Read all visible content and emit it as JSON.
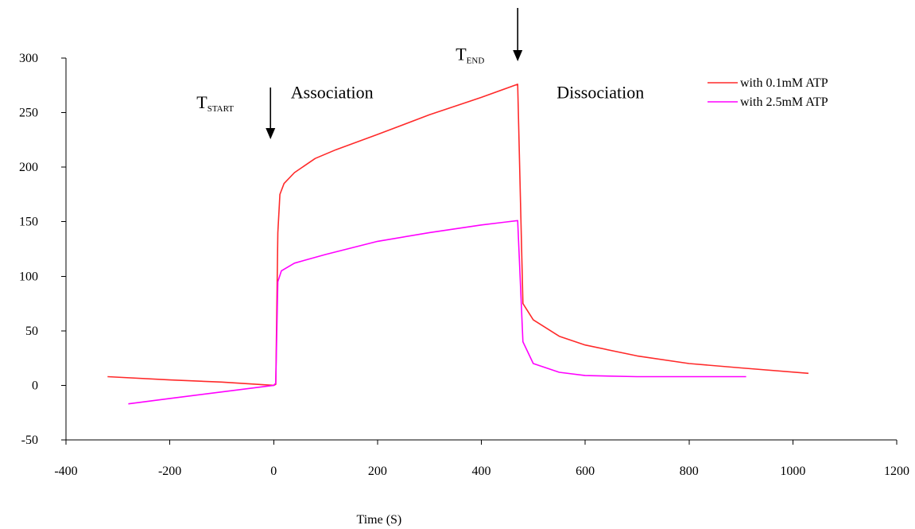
{
  "chart_data": {
    "type": "line",
    "title": "",
    "xlabel": "Time (S)",
    "ylabel": "",
    "xlim": [
      -400,
      1200
    ],
    "ylim": [
      -50,
      300
    ],
    "xticks": [
      -400,
      -200,
      0,
      200,
      400,
      600,
      800,
      1000,
      1200
    ],
    "yticks": [
      -50,
      0,
      50,
      100,
      150,
      200,
      250,
      300
    ],
    "grid": false,
    "legend_position": "top-right",
    "series": [
      {
        "name": "with 0.1mM ATP",
        "color": "#ff2a2a",
        "points": [
          [
            -320,
            8
          ],
          [
            -200,
            5
          ],
          [
            -100,
            3
          ],
          [
            0,
            0
          ],
          [
            4,
            1
          ],
          [
            8,
            140
          ],
          [
            12,
            175
          ],
          [
            20,
            185
          ],
          [
            40,
            195
          ],
          [
            80,
            208
          ],
          [
            120,
            216
          ],
          [
            200,
            230
          ],
          [
            300,
            248
          ],
          [
            400,
            264
          ],
          [
            470,
            276
          ],
          [
            480,
            75
          ],
          [
            500,
            60
          ],
          [
            550,
            45
          ],
          [
            600,
            37
          ],
          [
            700,
            27
          ],
          [
            800,
            20
          ],
          [
            900,
            16
          ],
          [
            1030,
            11
          ]
        ]
      },
      {
        "name": "with 2.5mM ATP",
        "color": "#ff00ff",
        "points": [
          [
            -280,
            -17
          ],
          [
            -200,
            -12
          ],
          [
            -100,
            -6
          ],
          [
            0,
            0
          ],
          [
            4,
            2
          ],
          [
            8,
            95
          ],
          [
            15,
            105
          ],
          [
            40,
            112
          ],
          [
            100,
            120
          ],
          [
            200,
            132
          ],
          [
            300,
            140
          ],
          [
            400,
            147
          ],
          [
            470,
            151
          ],
          [
            480,
            40
          ],
          [
            500,
            20
          ],
          [
            550,
            12
          ],
          [
            600,
            9
          ],
          [
            700,
            8
          ],
          [
            800,
            8
          ],
          [
            910,
            8
          ]
        ]
      }
    ],
    "annotations": [
      {
        "main": "T",
        "sub": "START",
        "x": 0,
        "y": 254
      },
      {
        "main": "T",
        "sub": "END",
        "x": 470,
        "y": 298
      },
      {
        "text": "Association",
        "x": 33,
        "y": 269
      },
      {
        "text": "Dissociation",
        "x": 545,
        "y": 269
      }
    ]
  }
}
